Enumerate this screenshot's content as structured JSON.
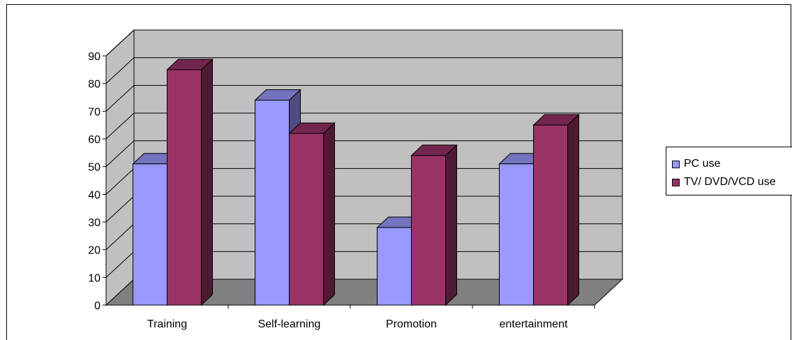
{
  "chart_data": {
    "type": "bar",
    "style": "3d-clustered-column",
    "categories": [
      "Training",
      "Self-learning",
      "Promotion",
      "entertainment"
    ],
    "series": [
      {
        "name": "PC use",
        "values": [
          51,
          74,
          28,
          51
        ],
        "color": "#9999ff"
      },
      {
        "name": "TV/ DVD/VCD use",
        "values": [
          85,
          62,
          54,
          65
        ],
        "color": "#993366"
      }
    ],
    "y_ticks": [
      "0",
      "10",
      "20",
      "30",
      "40",
      "50",
      "60",
      "70",
      "80",
      "90"
    ],
    "ylim": [
      0,
      90
    ],
    "grid": true,
    "legend_position": "right",
    "wall_color": "#c0c0c0",
    "floor_color": "#808080"
  },
  "legend": {
    "items": [
      {
        "label": "PC use",
        "color": "#9999ff"
      },
      {
        "label": "TV/ DVD/VCD use",
        "color": "#993366"
      }
    ]
  }
}
